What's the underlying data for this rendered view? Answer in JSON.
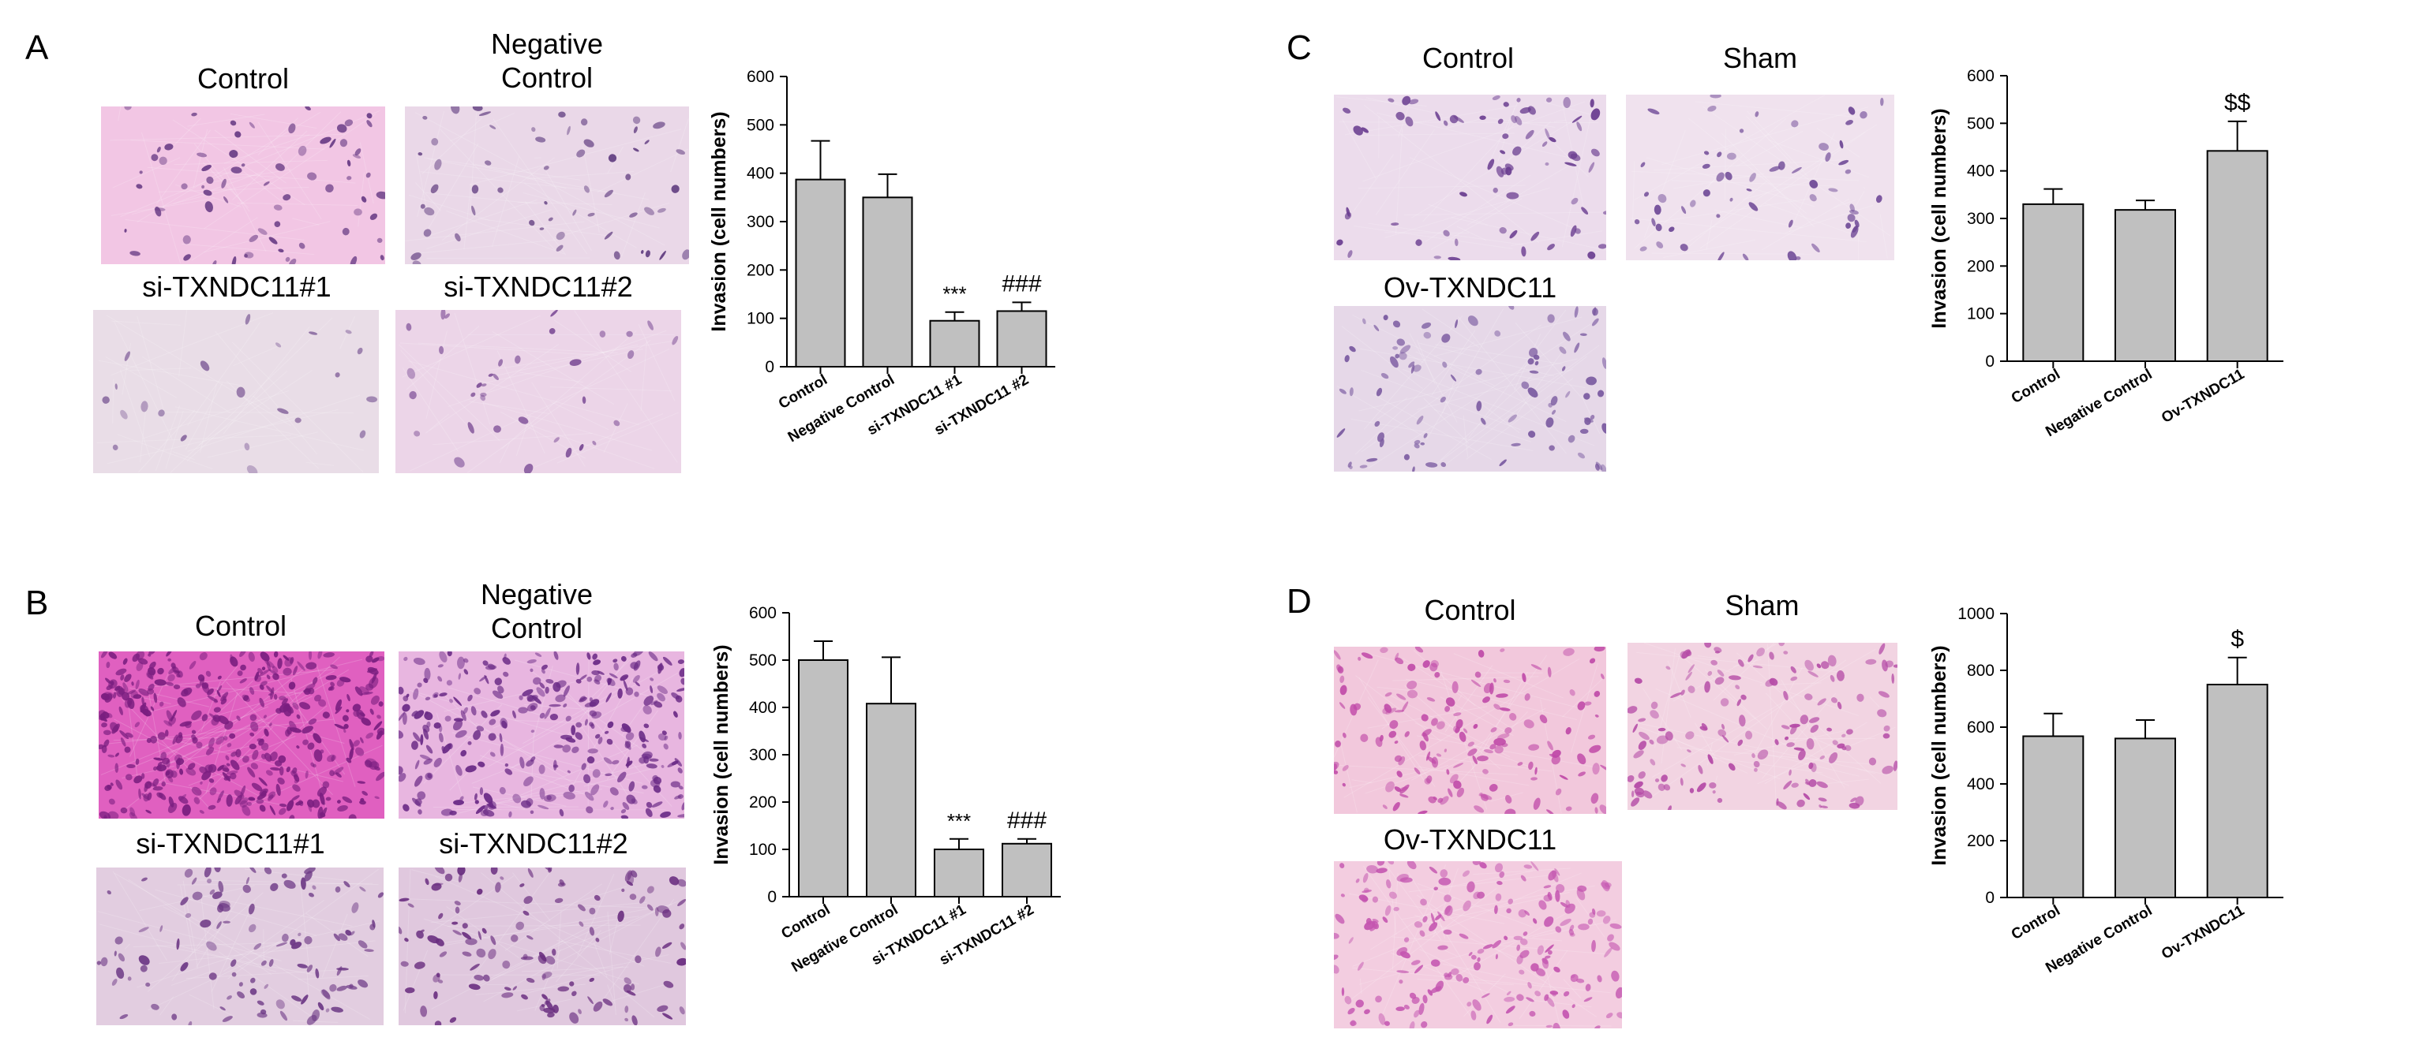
{
  "panels": [
    {
      "letter": "A",
      "images": [
        {
          "label": "Control",
          "colors": {
            "bg": "#f2c6e4",
            "spot": "#6a3d86"
          }
        },
        {
          "label": "Negative\nControl",
          "colors": {
            "bg": "#ead8e8",
            "spot": "#5e3a7e"
          }
        },
        {
          "label": "si-TXNDC11#1",
          "colors": {
            "bg": "#e9dde7",
            "spot": "#8a6aa0"
          }
        },
        {
          "label": "si-TXNDC11#2",
          "colors": {
            "bg": "#ecd5e8",
            "spot": "#7a4a94"
          }
        }
      ]
    },
    {
      "letter": "B",
      "images": [
        {
          "label": "Control",
          "colors": {
            "bg": "#e060c0",
            "spot": "#7a1e80"
          }
        },
        {
          "label": "Negative\nControl",
          "colors": {
            "bg": "#e8b6e0",
            "spot": "#6a2a86"
          }
        },
        {
          "label": "si-TXNDC11#1",
          "colors": {
            "bg": "#e2cde0",
            "spot": "#6e3a86"
          }
        },
        {
          "label": "si-TXNDC11#2",
          "colors": {
            "bg": "#e0c8de",
            "spot": "#6a2e80"
          }
        }
      ]
    },
    {
      "letter": "C",
      "images": [
        {
          "label": "Control",
          "colors": {
            "bg": "#ecdcec",
            "spot": "#6a3d90"
          }
        },
        {
          "label": "Sham",
          "colors": {
            "bg": "#f0e2ee",
            "spot": "#6e4896"
          }
        },
        {
          "label": "Ov-TXNDC11",
          "colors": {
            "bg": "#e6d8e8",
            "spot": "#7a5aa0"
          }
        }
      ]
    },
    {
      "letter": "D",
      "images": [
        {
          "label": "Control",
          "colors": {
            "bg": "#f2c8dc",
            "spot": "#c04aa8"
          }
        },
        {
          "label": "Sham",
          "colors": {
            "bg": "#f2d4e2",
            "spot": "#b44aa6"
          }
        },
        {
          "label": "Ov-TXNDC11",
          "colors": {
            "bg": "#f3cde0",
            "spot": "#c455b0"
          }
        }
      ]
    }
  ],
  "chart_data": [
    {
      "panel": "A",
      "type": "bar",
      "categories": [
        "Control",
        "Negative Control",
        "si-TXNDC11 #1",
        "si-TXNDC11 #2"
      ],
      "values": [
        387,
        350,
        95,
        115
      ],
      "errors": [
        80,
        48,
        18,
        18
      ],
      "annotations": [
        "",
        "",
        "***",
        "###"
      ],
      "ylabel": "Invasion (cell numbers)",
      "ylim": [
        0,
        600
      ],
      "yticks": [
        0,
        100,
        200,
        300,
        400,
        500,
        600
      ],
      "bar_color": "#c0c0c0"
    },
    {
      "panel": "B",
      "type": "bar",
      "categories": [
        "Control",
        "Negative Control",
        "si-TXNDC11 #1",
        "si-TXNDC11 #2"
      ],
      "values": [
        500,
        408,
        100,
        112
      ],
      "errors": [
        40,
        98,
        22,
        10
      ],
      "annotations": [
        "",
        "",
        "***",
        "###"
      ],
      "ylabel": "Invasion (cell numbers)",
      "ylim": [
        0,
        600
      ],
      "yticks": [
        0,
        100,
        200,
        300,
        400,
        500,
        600
      ],
      "bar_color": "#c0c0c0"
    },
    {
      "panel": "C",
      "type": "bar",
      "categories": [
        "Control",
        "Negative Control",
        "Ov-TXNDC11"
      ],
      "values": [
        330,
        318,
        442
      ],
      "errors": [
        32,
        20,
        62
      ],
      "annotations": [
        "",
        "",
        "$$"
      ],
      "ylabel": "Invasion (cell numbers)",
      "ylim": [
        0,
        600
      ],
      "yticks": [
        0,
        100,
        200,
        300,
        400,
        500,
        600
      ],
      "bar_color": "#c0c0c0"
    },
    {
      "panel": "D",
      "type": "bar",
      "categories": [
        "Control",
        "Negative Control",
        "Ov-TXNDC11"
      ],
      "values": [
        568,
        560,
        750
      ],
      "errors": [
        80,
        65,
        95
      ],
      "annotations": [
        "",
        "",
        "$"
      ],
      "ylabel": "Invasion (cell numbers)",
      "ylim": [
        0,
        1000
      ],
      "yticks": [
        0,
        200,
        400,
        600,
        800,
        1000
      ],
      "bar_color": "#c0c0c0"
    }
  ]
}
